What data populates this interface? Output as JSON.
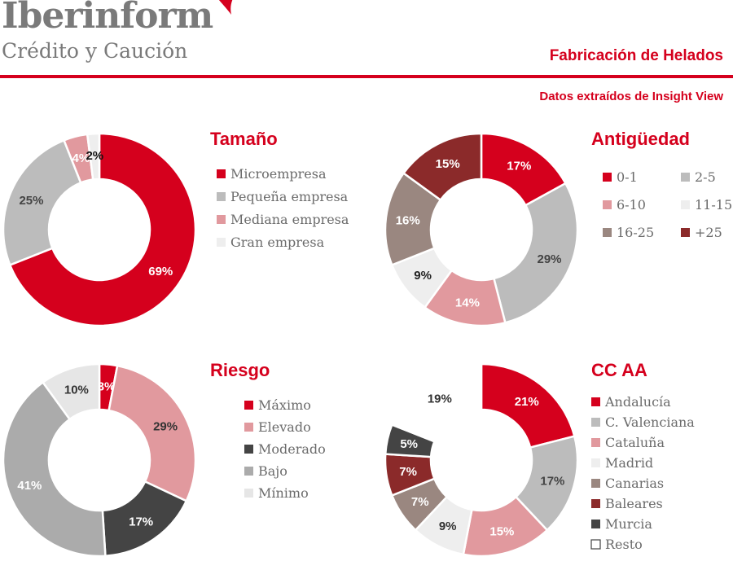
{
  "header": {
    "brand": "Iberinform",
    "brand_sub": "Crédito y Caución",
    "title": "Fabricación de Helados",
    "subtitle": "Datos extraídos de Insight View"
  },
  "chart_data": [
    {
      "type": "pie",
      "title": "Tamaño",
      "categories": [
        "Microempresa",
        "Pequeña empresa",
        "Mediana empresa",
        "Gran empresa"
      ],
      "values": [
        69,
        25,
        4,
        2
      ],
      "labels": [
        "69%",
        "25%",
        "4%",
        "2%"
      ],
      "colors": [
        "#d5001d",
        "#bcbcbc",
        "#e1999e",
        "#eeeeee"
      ],
      "label_colors": [
        "#ffffff",
        "#444444",
        "#ffffff",
        "#111111"
      ],
      "legend_position": "right",
      "legend_columns": 1
    },
    {
      "type": "pie",
      "title": "Antigüedad",
      "categories": [
        "0-1",
        "2-5",
        "6-10",
        "11-15",
        "16-25",
        "+25"
      ],
      "values": [
        17,
        29,
        14,
        9,
        16,
        15
      ],
      "labels": [
        "17%",
        "29%",
        "14%",
        "9%",
        "16%",
        "15%"
      ],
      "colors": [
        "#d5001d",
        "#bcbcbc",
        "#e1999e",
        "#eeeeee",
        "#9a8780",
        "#8b2a2a"
      ],
      "label_colors": [
        "#ffffff",
        "#444444",
        "#ffffff",
        "#222222",
        "#ffffff",
        "#ffffff"
      ],
      "legend_position": "right",
      "legend_columns": 2
    },
    {
      "type": "pie",
      "title": "Riesgo",
      "categories": [
        "Máximo",
        "Elevado",
        "Moderado",
        "Bajo",
        "Mínimo"
      ],
      "values": [
        3,
        29,
        17,
        41,
        10
      ],
      "labels": [
        "3%",
        "29%",
        "17%",
        "41%",
        "10%"
      ],
      "colors": [
        "#d5001d",
        "#e1999e",
        "#444444",
        "#ababab",
        "#e6e6e6"
      ],
      "label_colors": [
        "#ffffff",
        "#333333",
        "#ffffff",
        "#ffffff",
        "#333333"
      ],
      "legend_position": "right",
      "legend_columns": 1
    },
    {
      "type": "pie",
      "title": "CC AA",
      "categories": [
        "Andalucía",
        "C. Valenciana",
        "Cataluña",
        "Madrid",
        "Canarias",
        "Baleares",
        "Murcia",
        "Resto"
      ],
      "values": [
        21,
        17,
        15,
        9,
        7,
        7,
        5,
        19
      ],
      "labels": [
        "21%",
        "17%",
        "15%",
        "9%",
        "7%",
        "7%",
        "5%",
        "19%"
      ],
      "colors": [
        "#d5001d",
        "#bcbcbc",
        "#e1999e",
        "#eeeeee",
        "#9a8780",
        "#8b2a2a",
        "#444444",
        "#ffffff"
      ],
      "label_colors": [
        "#ffffff",
        "#444444",
        "#ffffff",
        "#333333",
        "#ffffff",
        "#ffffff",
        "#ffffff",
        "#333333"
      ],
      "legend_position": "right",
      "legend_columns": 1
    }
  ]
}
